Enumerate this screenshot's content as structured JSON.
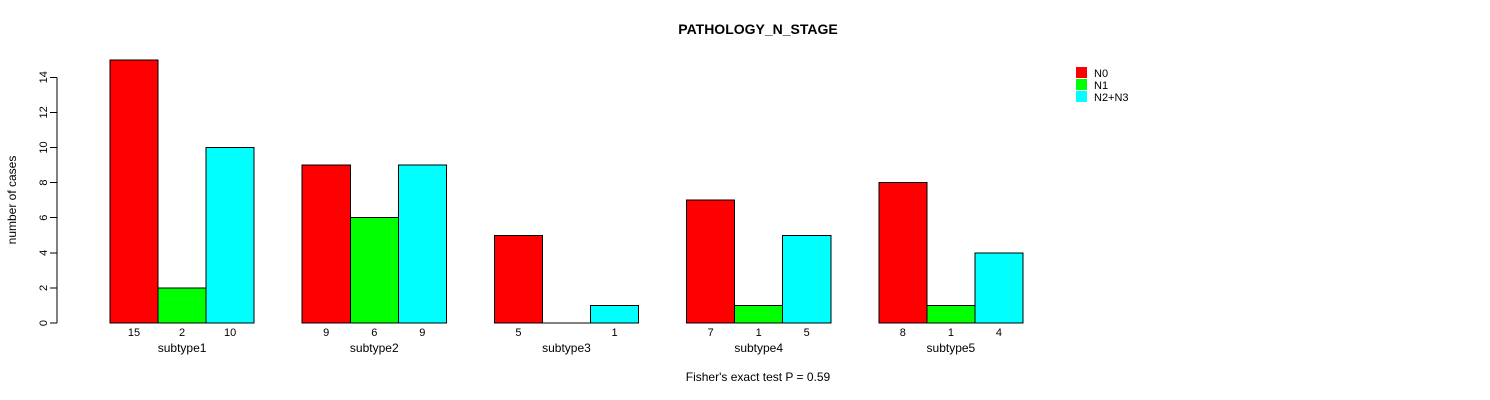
{
  "title": "PATHOLOGY_N_STAGE",
  "ylabel": "number of cases",
  "annotation": "Fisher's exact test P = 0.59",
  "legend": {
    "position": "top-right",
    "items": [
      {
        "label": "N0",
        "color": "#ff0000"
      },
      {
        "label": "N1",
        "color": "#00ff00"
      },
      {
        "label": "N2+N3",
        "color": "#00ffff"
      }
    ]
  },
  "chart_data": {
    "type": "bar",
    "grouped": true,
    "title": "PATHOLOGY_N_STAGE",
    "xlabel": "",
    "ylabel": "number of cases",
    "categories": [
      "subtype1",
      "subtype2",
      "subtype3",
      "subtype4",
      "subtype5"
    ],
    "series": [
      {
        "name": "N0",
        "color": "#ff0000",
        "values": [
          15,
          9,
          5,
          7,
          8
        ]
      },
      {
        "name": "N1",
        "color": "#00ff00",
        "values": [
          2,
          6,
          0,
          1,
          1
        ]
      },
      {
        "name": "N2+N3",
        "color": "#00ffff",
        "values": [
          10,
          9,
          1,
          5,
          4
        ]
      }
    ],
    "yticks": [
      0,
      2,
      4,
      6,
      8,
      10,
      12,
      14
    ],
    "ylim": [
      0,
      15
    ],
    "grid": false,
    "legend_position": "top-right",
    "bar_value_labels": true,
    "hide_zero_value_labels": true,
    "bar_border_color": "#000000",
    "background": "#ffffff",
    "annotation": "Fisher's exact test P = 0.59"
  }
}
